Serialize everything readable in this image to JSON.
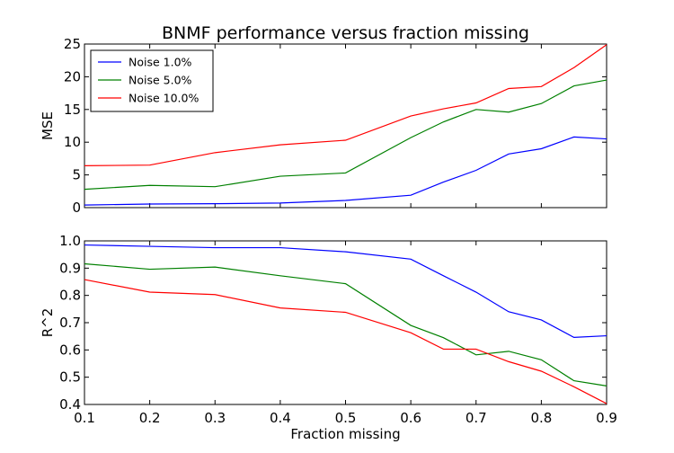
{
  "title": "BNMF performance versus fraction missing",
  "chart_data": [
    {
      "type": "line",
      "title": "BNMF performance versus fraction missing",
      "xlabel": "",
      "ylabel": "MSE",
      "xlim": [
        0.1,
        0.9
      ],
      "ylim": [
        0,
        25
      ],
      "yticks": [
        "0",
        "5",
        "10",
        "15",
        "20",
        "25"
      ],
      "xticks": [],
      "legend": "top-left",
      "x": [
        0.1,
        0.2,
        0.3,
        0.4,
        0.5,
        0.6,
        0.65,
        0.7,
        0.75,
        0.8,
        0.85,
        0.9
      ],
      "series": [
        {
          "name": "Noise 1.0%",
          "color": "#0000ff",
          "values": [
            0.4,
            0.55,
            0.6,
            0.7,
            1.1,
            1.9,
            3.9,
            5.7,
            8.2,
            9.0,
            10.8,
            10.5
          ]
        },
        {
          "name": "Noise 5.0%",
          "color": "#008000",
          "values": [
            2.8,
            3.4,
            3.2,
            4.8,
            5.3,
            10.7,
            13.1,
            15.0,
            14.6,
            15.9,
            18.6,
            19.5
          ]
        },
        {
          "name": "Noise 10.0%",
          "color": "#ff0000",
          "values": [
            6.4,
            6.5,
            8.4,
            9.6,
            10.3,
            14.0,
            15.1,
            16.0,
            18.2,
            18.5,
            21.4,
            24.9
          ]
        }
      ]
    },
    {
      "type": "line",
      "title": "",
      "xlabel": "Fraction missing",
      "ylabel": "R^2",
      "xlim": [
        0.1,
        0.9
      ],
      "ylim": [
        0.4,
        1.0
      ],
      "yticks": [
        "0.4",
        "0.5",
        "0.6",
        "0.7",
        "0.8",
        "0.9",
        "1.0"
      ],
      "xticks": [
        "0.1",
        "0.2",
        "0.3",
        "0.4",
        "0.5",
        "0.6",
        "0.7",
        "0.8",
        "0.9"
      ],
      "x": [
        0.1,
        0.2,
        0.3,
        0.4,
        0.5,
        0.6,
        0.65,
        0.7,
        0.75,
        0.8,
        0.85,
        0.9
      ],
      "series": [
        {
          "name": "Noise 1.0%",
          "color": "#0000ff",
          "values": [
            0.985,
            0.98,
            0.975,
            0.975,
            0.96,
            0.933,
            0.872,
            0.812,
            0.74,
            0.71,
            0.646,
            0.652
          ]
        },
        {
          "name": "Noise 5.0%",
          "color": "#008000",
          "values": [
            0.916,
            0.896,
            0.904,
            0.872,
            0.843,
            0.69,
            0.645,
            0.582,
            0.595,
            0.564,
            0.487,
            0.468
          ]
        },
        {
          "name": "Noise 10.0%",
          "color": "#ff0000",
          "values": [
            0.858,
            0.812,
            0.803,
            0.754,
            0.738,
            0.663,
            0.603,
            0.603,
            0.557,
            0.522,
            0.465,
            0.403
          ]
        }
      ]
    }
  ]
}
